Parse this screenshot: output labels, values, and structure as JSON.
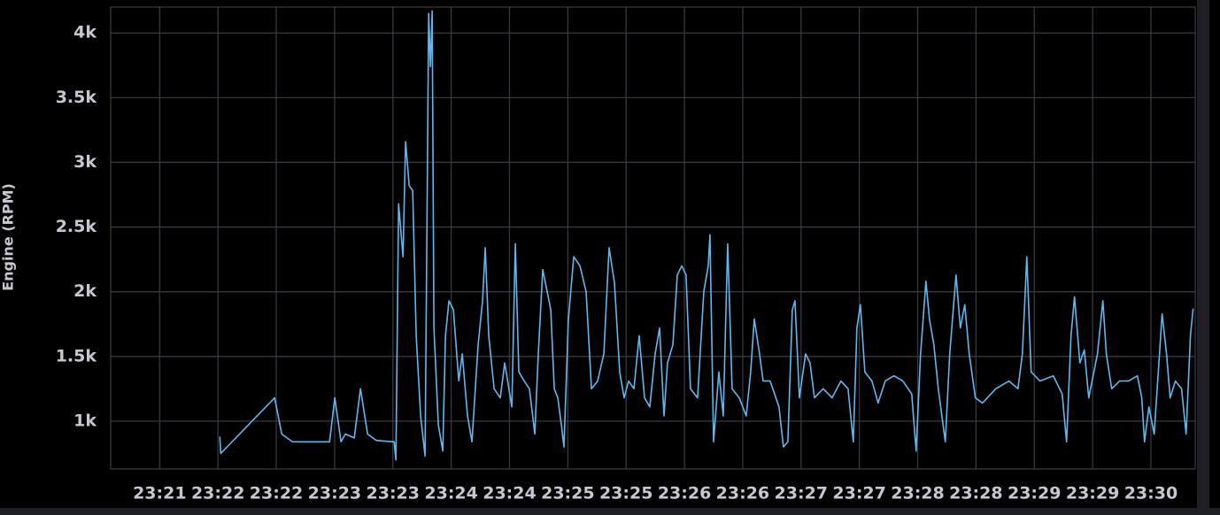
{
  "chart_data": {
    "type": "line",
    "y_label": "Engine (RPM)",
    "color": "#5db8ef",
    "grid": true,
    "xlim": [
      1400.58,
      1409.88
    ],
    "ylim": [
      630,
      4200
    ],
    "xticks": [
      {
        "value": 1401,
        "label": "23:21"
      },
      {
        "value": 1401.5,
        "label": "23:22"
      },
      {
        "value": 1402,
        "label": "23:22"
      },
      {
        "value": 1402.5,
        "label": "23:23"
      },
      {
        "value": 1403,
        "label": "23:23"
      },
      {
        "value": 1403.5,
        "label": "23:24"
      },
      {
        "value": 1404,
        "label": "23:24"
      },
      {
        "value": 1404.5,
        "label": "23:25"
      },
      {
        "value": 1405,
        "label": "23:25"
      },
      {
        "value": 1405.5,
        "label": "23:26"
      },
      {
        "value": 1406,
        "label": "23:26"
      },
      {
        "value": 1406.5,
        "label": "23:27"
      },
      {
        "value": 1407,
        "label": "23:27"
      },
      {
        "value": 1407.5,
        "label": "23:28"
      },
      {
        "value": 1408,
        "label": "23:28"
      },
      {
        "value": 1408.5,
        "label": "23:29"
      },
      {
        "value": 1409,
        "label": "23:29"
      },
      {
        "value": 1409.5,
        "label": "23:30"
      }
    ],
    "yticks": [
      {
        "value": 1000,
        "label": "1k"
      },
      {
        "value": 1500,
        "label": "1.5k"
      },
      {
        "value": 2000,
        "label": "2k"
      },
      {
        "value": 2500,
        "label": "2.5k"
      },
      {
        "value": 3000,
        "label": "3k"
      },
      {
        "value": 3500,
        "label": "3.5k"
      },
      {
        "value": 4000,
        "label": "4k"
      }
    ],
    "x": [
      1401.516,
      1401.524,
      1401.986,
      1402.047,
      1402.138,
      1402.366,
      1402.457,
      1402.502,
      1402.555,
      1402.593,
      1402.669,
      1402.722,
      1402.783,
      1402.859,
      1403.011,
      1403.026,
      1403.049,
      1403.087,
      1403.109,
      1403.14,
      1403.17,
      1403.2,
      1403.238,
      1403.276,
      1403.307,
      1403.322,
      1403.337,
      1403.352,
      1403.39,
      1403.428,
      1403.451,
      1403.481,
      1403.519,
      1403.565,
      1403.595,
      1403.64,
      1403.678,
      1403.731,
      1403.769,
      1403.792,
      1403.822,
      1403.868,
      1403.921,
      1403.959,
      1404.02,
      1404.05,
      1404.08,
      1404.126,
      1404.171,
      1404.217,
      1404.247,
      1404.285,
      1404.323,
      1404.354,
      1404.384,
      1404.414,
      1404.445,
      1404.467,
      1404.505,
      1404.551,
      1404.604,
      1404.657,
      1404.703,
      1404.756,
      1404.809,
      1404.854,
      1404.9,
      1404.945,
      1404.983,
      1405.021,
      1405.067,
      1405.112,
      1405.158,
      1405.203,
      1405.249,
      1405.287,
      1405.325,
      1405.355,
      1405.401,
      1405.439,
      1405.477,
      1405.514,
      1405.552,
      1405.613,
      1405.666,
      1405.704,
      1405.719,
      1405.75,
      1405.795,
      1405.833,
      1405.871,
      1405.909,
      1405.97,
      1406.03,
      1406.068,
      1406.099,
      1406.144,
      1406.175,
      1406.235,
      1406.311,
      1406.349,
      1406.387,
      1406.425,
      1406.448,
      1406.486,
      1406.539,
      1406.577,
      1406.615,
      1406.69,
      1406.766,
      1406.842,
      1406.903,
      1406.948,
      1406.979,
      1407.009,
      1407.047,
      1407.108,
      1407.161,
      1407.222,
      1407.297,
      1407.373,
      1407.449,
      1407.487,
      1407.525,
      1407.571,
      1407.601,
      1407.639,
      1407.677,
      1407.737,
      1407.775,
      1407.829,
      1407.866,
      1407.904,
      1407.942,
      1407.995,
      1408.056,
      1408.17,
      1408.284,
      1408.36,
      1408.398,
      1408.436,
      1408.473,
      1408.549,
      1408.663,
      1408.739,
      1408.777,
      1408.815,
      1408.845,
      1408.891,
      1408.929,
      1408.967,
      1409.042,
      1409.088,
      1409.118,
      1409.164,
      1409.232,
      1409.308,
      1409.384,
      1409.422,
      1409.445,
      1409.483,
      1409.528,
      1409.574,
      1409.596,
      1409.634,
      1409.665,
      1409.71,
      1409.763,
      1409.802,
      1409.839,
      1409.862
    ],
    "values": [
      880,
      750,
      1180,
      900,
      840,
      840,
      840,
      1180,
      840,
      900,
      870,
      1250,
      900,
      850,
      840,
      700,
      2680,
      2270,
      3160,
      2820,
      2780,
      1660,
      1040,
      730,
      4150,
      3740,
      4170,
      1720,
      970,
      770,
      1660,
      1930,
      1860,
      1310,
      1520,
      1040,
      840,
      1590,
      1930,
      2340,
      1660,
      1250,
      1180,
      1450,
      1110,
      2370,
      1380,
      1310,
      1250,
      900,
      1520,
      2170,
      2000,
      1860,
      1250,
      1180,
      970,
      800,
      1790,
      2270,
      2200,
      2000,
      1250,
      1310,
      1520,
      2340,
      2070,
      1380,
      1180,
      1310,
      1250,
      1660,
      1180,
      1110,
      1520,
      1720,
      1040,
      1450,
      1590,
      2130,
      2200,
      2130,
      1250,
      1180,
      2000,
      2200,
      2440,
      840,
      1380,
      1040,
      2370,
      1250,
      1180,
      1040,
      1380,
      1790,
      1520,
      1310,
      1310,
      1110,
      800,
      840,
      1860,
      1930,
      1180,
      1520,
      1450,
      1180,
      1250,
      1180,
      1310,
      1250,
      840,
      1720,
      1900,
      1380,
      1310,
      1140,
      1310,
      1350,
      1310,
      1210,
      770,
      1520,
      2080,
      1790,
      1590,
      1250,
      840,
      1520,
      2130,
      1720,
      1900,
      1520,
      1180,
      1140,
      1250,
      1310,
      1250,
      1520,
      2270,
      1380,
      1310,
      1350,
      1210,
      840,
      1660,
      1960,
      1450,
      1550,
      1180,
      1520,
      1930,
      1520,
      1250,
      1310,
      1310,
      1350,
      1180,
      840,
      1110,
      900,
      1520,
      1830,
      1520,
      1180,
      1310,
      1250,
      900,
      1660,
      1870
    ]
  }
}
